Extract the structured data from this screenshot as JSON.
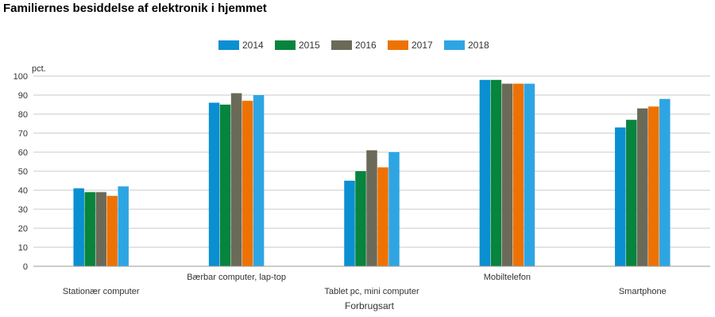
{
  "chart_data": {
    "type": "bar",
    "title": "Familiernes besiddelse af elektronik i hjemmet",
    "xlabel": "Forbrugsart",
    "ylabel": "pct.",
    "ylim": [
      0,
      100
    ],
    "yticks": [
      0,
      10,
      20,
      30,
      40,
      50,
      60,
      70,
      80,
      90,
      100
    ],
    "grid": true,
    "legend_position": "top",
    "categories": [
      "Stationær computer",
      "Bærbar computer, lap-top",
      "Tablet pc, mini computer",
      "Mobiltelefon",
      "Smartphone"
    ],
    "series": [
      {
        "name": "2014",
        "color": "#0a8fd1",
        "values": [
          41,
          86,
          45,
          98,
          73
        ]
      },
      {
        "name": "2015",
        "color": "#07843d",
        "values": [
          39,
          85,
          50,
          98,
          77
        ]
      },
      {
        "name": "2016",
        "color": "#6b6a59",
        "values": [
          39,
          91,
          61,
          96,
          83
        ]
      },
      {
        "name": "2017",
        "color": "#ee7203",
        "values": [
          37,
          87,
          52,
          96,
          84
        ]
      },
      {
        "name": "2018",
        "color": "#2ea5e3",
        "values": [
          42,
          90,
          60,
          96,
          88
        ]
      }
    ]
  }
}
